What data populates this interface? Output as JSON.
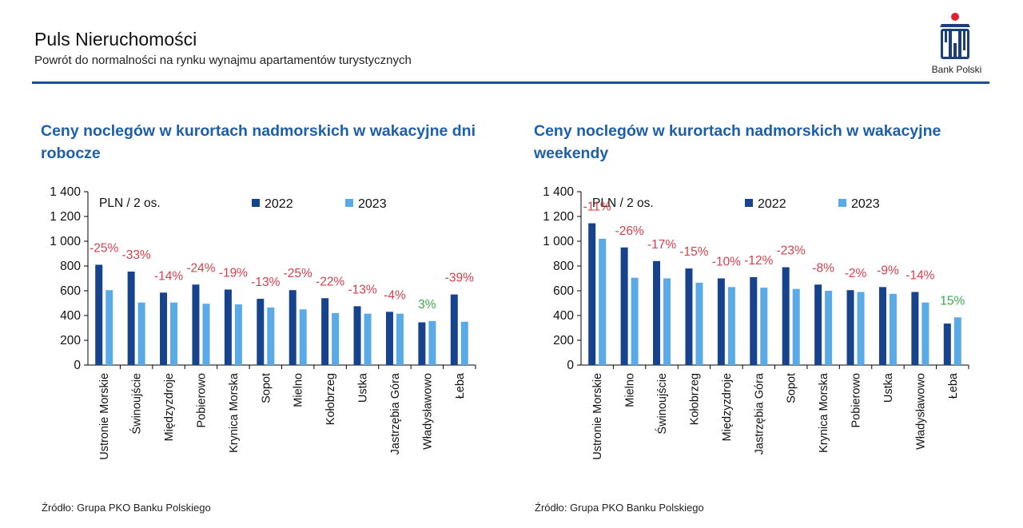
{
  "header": {
    "title": "Puls Nieruchomości",
    "subtitle": "Powrót do normalności na rynku wynajmu apartamentów turystycznych"
  },
  "logo": {
    "text": "Bank Polski",
    "icon": "pko-logo-icon"
  },
  "colors": {
    "series_2022": "#17428c",
    "series_2023": "#5aaae8",
    "label_negative": "#d43f4a",
    "label_positive": "#3aa84a",
    "title_blue": "#1d5fa8",
    "rule": "#1a4f95"
  },
  "chart_data": [
    {
      "type": "bar",
      "title": "Ceny noclegów w kurortach nadmorskich w wakacyjne dni robocze",
      "unit_label": "PLN / 2 os.",
      "ylim": [
        0,
        1400
      ],
      "y_ticks": [
        "0",
        "200",
        "400",
        "600",
        "800",
        "1 000",
        "1 200",
        "1 400"
      ],
      "y_tick_values": [
        0,
        200,
        400,
        600,
        800,
        1000,
        1200,
        1400
      ],
      "legend_position": "top",
      "categories": [
        "Ustronie Morskie",
        "Świnoujście",
        "Międzyzdroje",
        "Pobierowo",
        "Krynica Morska",
        "Sopot",
        "Mielno",
        "Kołobrzeg",
        "Ustka",
        "Jastrzębia Góra",
        "Władysławowo",
        "Łeba"
      ],
      "series": [
        {
          "name": "2022",
          "values": [
            810,
            755,
            585,
            650,
            610,
            535,
            605,
            540,
            475,
            430,
            345,
            570
          ]
        },
        {
          "name": "2023",
          "values": [
            605,
            505,
            505,
            495,
            490,
            465,
            450,
            420,
            415,
            415,
            355,
            350
          ]
        }
      ],
      "change_labels": [
        "-25%",
        "-33%",
        "-14%",
        "-24%",
        "-19%",
        "-13%",
        "-25%",
        "-22%",
        "-13%",
        "-4%",
        "3%",
        "-39%"
      ],
      "source": "Źródło: Grupa PKO Banku Polskiego"
    },
    {
      "type": "bar",
      "title": "Ceny noclegów w kurortach nadmorskich w wakacyjne weekendy",
      "unit_label": "PLN / 2 os.",
      "ylim": [
        0,
        1400
      ],
      "y_ticks": [
        "0",
        "200",
        "400",
        "600",
        "800",
        "1 000",
        "1 200",
        "1 400"
      ],
      "y_tick_values": [
        0,
        200,
        400,
        600,
        800,
        1000,
        1200,
        1400
      ],
      "legend_position": "top",
      "categories": [
        "Ustronie Morskie",
        "Mielno",
        "Świnoujście",
        "Kołobrzeg",
        "Międzyzdroje",
        "Jastrzębia Góra",
        "Sopot",
        "Krynica Morska",
        "Pobierowo",
        "Ustka",
        "Władysławowo",
        "Łeba"
      ],
      "series": [
        {
          "name": "2022",
          "values": [
            1145,
            950,
            840,
            780,
            700,
            710,
            790,
            650,
            605,
            630,
            590,
            335
          ]
        },
        {
          "name": "2023",
          "values": [
            1020,
            705,
            700,
            665,
            630,
            625,
            615,
            600,
            590,
            575,
            505,
            385
          ]
        }
      ],
      "change_labels": [
        "-11%",
        "-26%",
        "-17%",
        "-15%",
        "-10%",
        "-12%",
        "-23%",
        "-8%",
        "-2%",
        "-9%",
        "-14%",
        "15%"
      ],
      "source": "Źródło: Grupa PKO Banku Polskiego"
    }
  ]
}
